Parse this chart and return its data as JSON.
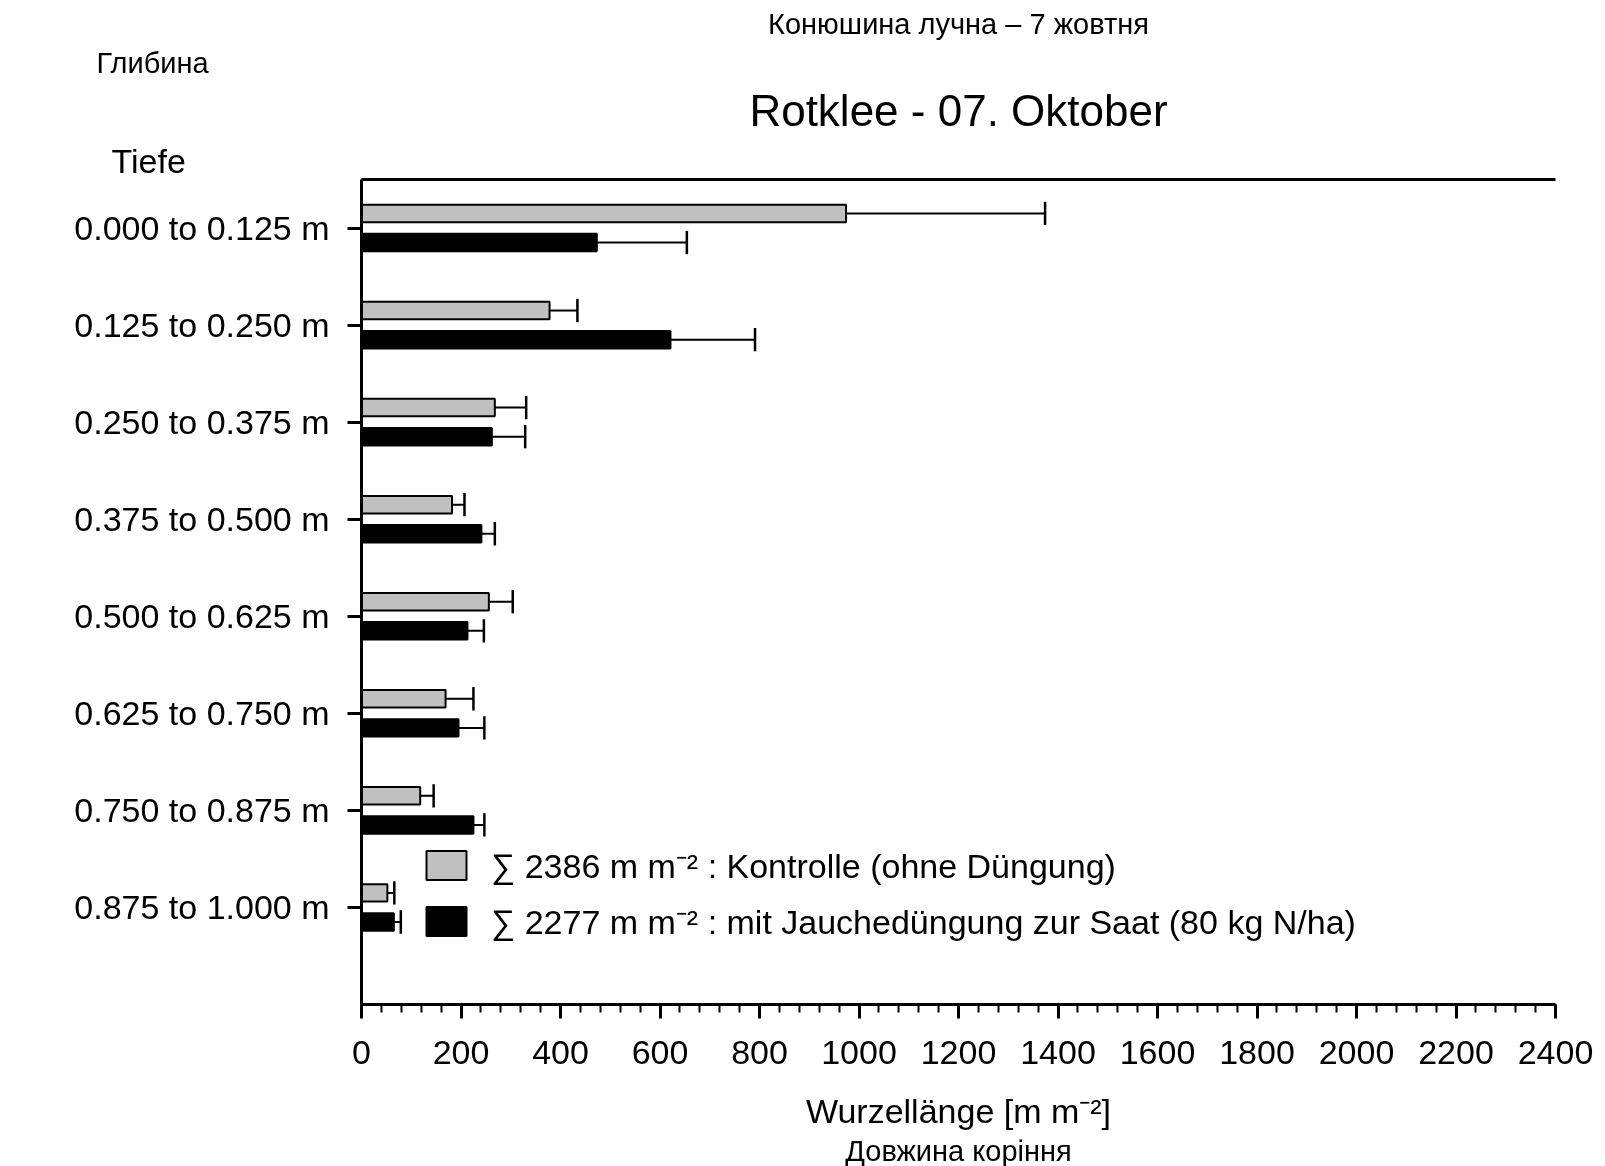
{
  "chart_data": {
    "type": "bar",
    "orientation": "horizontal",
    "title": "Rotklee - 07. Oktober",
    "subtitle": "Конюшина лучна – 7 жовтня",
    "xlabel": "Wurzellänge [m m⁻²]",
    "ylabel": "Tiefe",
    "annotations": [
      "Глибина",
      "Довжина коріння"
    ],
    "categories": [
      "0.000 to 0.125 m",
      "0.125 to 0.250 m",
      "0.250 to 0.375 m",
      "0.375 to 0.500 m",
      "0.500 to 0.625 m",
      "0.625 to 0.750 m",
      "0.750 to 0.875 m",
      "0.875 to 1.000 m"
    ],
    "series": [
      {
        "name": "∑ 2386 m m⁻² : Kontrolle (ohne Düngung)",
        "color": "#c0c0c0",
        "values": [
          974,
          378,
          268,
          182,
          256,
          169,
          118,
          52
        ],
        "errors": [
          [
            974,
            1374
          ],
          [
            378,
            434
          ],
          [
            268,
            331
          ],
          [
            182,
            207
          ],
          [
            256,
            304
          ],
          [
            169,
            225
          ],
          [
            118,
            145
          ],
          [
            52,
            66
          ]
        ]
      },
      {
        "name": "∑ 2277 m m⁻² : mit Jauchedüngung zur Saat (80 kg N/ha)",
        "color": "#000000",
        "values": [
          473,
          621,
          262,
          241,
          213,
          195,
          225,
          65
        ],
        "errors": [
          [
            473,
            654
          ],
          [
            621,
            791
          ],
          [
            262,
            329
          ],
          [
            241,
            268
          ],
          [
            213,
            246
          ],
          [
            195,
            247
          ],
          [
            225,
            247
          ],
          [
            65,
            79
          ]
        ]
      }
    ],
    "xlim": [
      0,
      2400
    ],
    "xticks": [
      0,
      200,
      400,
      600,
      800,
      1000,
      1200,
      1400,
      1600,
      1800,
      2000,
      2200,
      2400
    ],
    "grid": false,
    "legend": "bottom"
  }
}
